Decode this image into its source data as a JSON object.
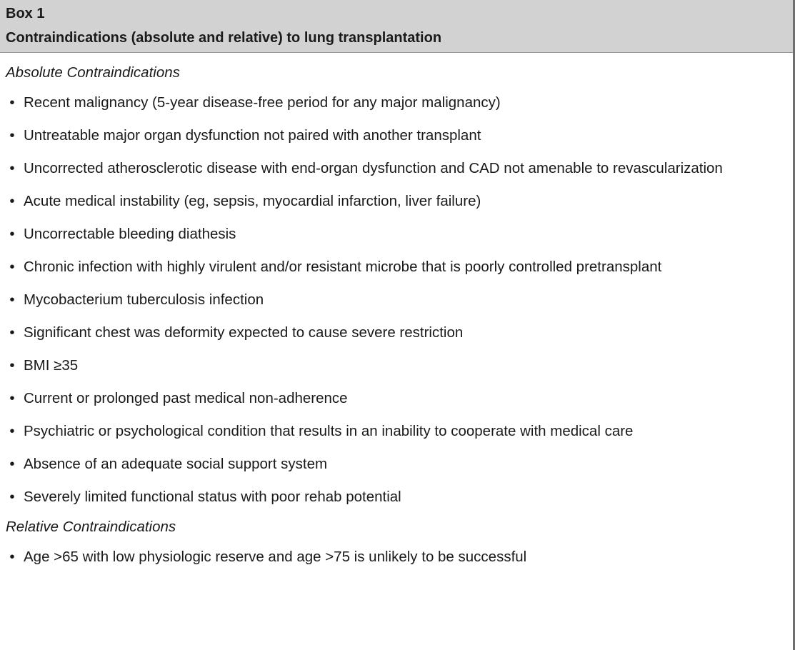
{
  "box": {
    "label": "Box 1",
    "title": "Contraindications (absolute and relative) to lung transplantation"
  },
  "absolute": {
    "heading": "Absolute Contraindications",
    "items": [
      "Recent malignancy (5-year disease-free period for any major malignancy)",
      "Untreatable major organ dysfunction not paired with another transplant",
      "Uncorrected atherosclerotic disease with end-organ dysfunction and CAD not amenable to revascularization",
      "Acute medical instability (eg, sepsis, myocardial infarction, liver failure)",
      "Uncorrectable bleeding diathesis",
      "Chronic infection with highly virulent and/or resistant microbe that is poorly controlled pretransplant",
      "Mycobacterium tuberculosis infection",
      "Significant chest was deformity expected to cause severe restriction",
      "BMI ≥35",
      "Current or prolonged past medical non-adherence",
      "Psychiatric or psychological condition that results in an inability to cooperate with medical care",
      "Absence of an adequate social support system",
      "Severely limited functional status with poor rehab potential"
    ]
  },
  "relative": {
    "heading": "Relative Contraindications",
    "items": [
      "Age >65 with low physiologic reserve and age >75 is unlikely to be successful"
    ]
  },
  "bullet_glyph": "•"
}
